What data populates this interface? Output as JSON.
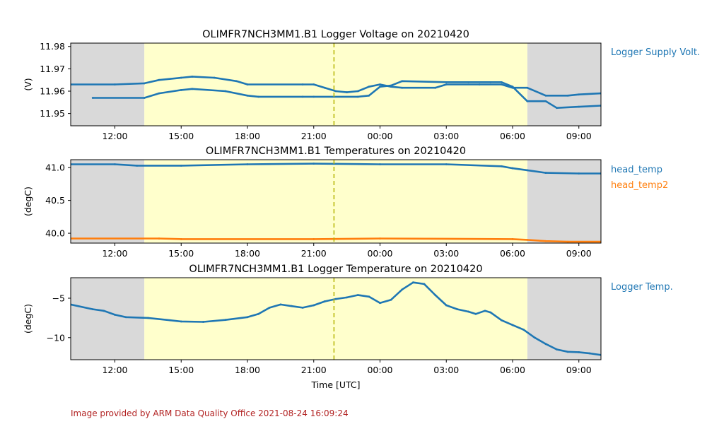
{
  "chart_data": [
    {
      "type": "scatter",
      "title": "OLIMFR7NCH3MM1.B1 Logger Voltage on 20210420",
      "ylabel": "(V)",
      "xlabel": "",
      "xlim": [
        "2021-04-20T10:00",
        "2021-04-21T10:00"
      ],
      "ylim": [
        11.9445,
        11.9815
      ],
      "yticks": [
        11.95,
        11.96,
        11.97,
        11.98
      ],
      "ytick_labels": [
        "11.95",
        "11.96",
        "11.97",
        "11.98"
      ],
      "xticks": [
        "2021-04-20T12:00",
        "2021-04-20T15:00",
        "2021-04-20T18:00",
        "2021-04-20T21:00",
        "2021-04-21T00:00",
        "2021-04-21T03:00",
        "2021-04-21T06:00",
        "2021-04-21T09:00"
      ],
      "xtick_labels": [
        "12:00",
        "15:00",
        "18:00",
        "21:00",
        "00:00",
        "03:00",
        "06:00",
        "09:00"
      ],
      "night_shading": [
        [
          "2021-04-20T10:00",
          "2021-04-20T13:20"
        ],
        [
          "2021-04-21T06:40",
          "2021-04-21T10:00"
        ]
      ],
      "day_shading": [
        "2021-04-20T13:20",
        "2021-04-21T06:40"
      ],
      "marker_line": "2021-04-20T21:55",
      "legend_position": "right",
      "series": [
        {
          "name": "Logger Supply Volt.",
          "color": "#1f77b4",
          "points": [
            [
              "2021-04-20T10:00",
              11.963
            ],
            [
              "2021-04-20T12:00",
              11.963
            ],
            [
              "2021-04-20T13:20",
              11.9635
            ],
            [
              "2021-04-20T14:00",
              11.965
            ],
            [
              "2021-04-20T15:00",
              11.966
            ],
            [
              "2021-04-20T15:30",
              11.9665
            ],
            [
              "2021-04-20T16:30",
              11.966
            ],
            [
              "2021-04-20T17:30",
              11.9645
            ],
            [
              "2021-04-20T18:00",
              11.963
            ],
            [
              "2021-04-20T20:30",
              11.963
            ],
            [
              "2021-04-20T21:00",
              11.963
            ],
            [
              "2021-04-20T21:30",
              11.9615
            ],
            [
              "2021-04-20T22:00",
              11.96
            ],
            [
              "2021-04-20T22:30",
              11.9595
            ],
            [
              "2021-04-20T23:00",
              11.96
            ],
            [
              "2021-04-20T23:30",
              11.962
            ],
            [
              "2021-04-21T00:00",
              11.963
            ],
            [
              "2021-04-21T00:30",
              11.962
            ],
            [
              "2021-04-21T01:00",
              11.9615
            ],
            [
              "2021-04-21T02:30",
              11.9615
            ],
            [
              "2021-04-21T03:00",
              11.963
            ],
            [
              "2021-04-21T04:30",
              11.963
            ],
            [
              "2021-04-21T05:30",
              11.963
            ],
            [
              "2021-04-21T06:00",
              11.9615
            ],
            [
              "2021-04-21T06:40",
              11.9615
            ],
            [
              "2021-04-21T07:30",
              11.958
            ],
            [
              "2021-04-21T08:30",
              11.958
            ],
            [
              "2021-04-21T09:00",
              11.9585
            ],
            [
              "2021-04-21T10:00",
              11.959
            ]
          ]
        },
        {
          "name": "",
          "color": "#1f77b4",
          "points": [
            [
              "2021-04-20T11:00",
              11.957
            ],
            [
              "2021-04-20T13:20",
              11.957
            ],
            [
              "2021-04-20T14:00",
              11.959
            ],
            [
              "2021-04-20T15:00",
              11.9605
            ],
            [
              "2021-04-20T15:30",
              11.961
            ],
            [
              "2021-04-20T17:00",
              11.96
            ],
            [
              "2021-04-20T18:00",
              11.958
            ],
            [
              "2021-04-20T18:30",
              11.9575
            ],
            [
              "2021-04-20T20:30",
              11.9575
            ],
            [
              "2021-04-20T21:00",
              11.9575
            ],
            [
              "2021-04-20T23:00",
              11.9575
            ],
            [
              "2021-04-20T23:30",
              11.958
            ],
            [
              "2021-04-21T00:00",
              11.962
            ],
            [
              "2021-04-21T00:30",
              11.9625
            ],
            [
              "2021-04-21T01:00",
              11.9645
            ],
            [
              "2021-04-21T03:00",
              11.964
            ],
            [
              "2021-04-21T04:00",
              11.964
            ],
            [
              "2021-04-21T05:00",
              11.964
            ],
            [
              "2021-04-21T05:30",
              11.964
            ],
            [
              "2021-04-21T06:00",
              11.962
            ],
            [
              "2021-04-21T06:40",
              11.9555
            ],
            [
              "2021-04-21T07:30",
              11.9555
            ],
            [
              "2021-04-21T08:00",
              11.9525
            ],
            [
              "2021-04-21T09:00",
              11.953
            ],
            [
              "2021-04-21T10:00",
              11.9535
            ]
          ]
        }
      ]
    },
    {
      "type": "line",
      "title": "OLIMFR7NCH3MM1.B1 Temperatures on 20210420",
      "ylabel": "(degC)",
      "xlabel": "",
      "xlim": [
        "2021-04-20T10:00",
        "2021-04-21T10:00"
      ],
      "ylim": [
        39.85,
        41.12
      ],
      "yticks": [
        40.0,
        40.5,
        41.0
      ],
      "ytick_labels": [
        "40.0",
        "40.5",
        "41.0"
      ],
      "xticks": [
        "2021-04-20T12:00",
        "2021-04-20T15:00",
        "2021-04-20T18:00",
        "2021-04-20T21:00",
        "2021-04-21T00:00",
        "2021-04-21T03:00",
        "2021-04-21T06:00",
        "2021-04-21T09:00"
      ],
      "xtick_labels": [
        "12:00",
        "15:00",
        "18:00",
        "21:00",
        "00:00",
        "03:00",
        "06:00",
        "09:00"
      ],
      "night_shading": [
        [
          "2021-04-20T10:00",
          "2021-04-20T13:20"
        ],
        [
          "2021-04-21T06:40",
          "2021-04-21T10:00"
        ]
      ],
      "day_shading": [
        "2021-04-20T13:20",
        "2021-04-21T06:40"
      ],
      "marker_line": "2021-04-20T21:55",
      "legend_position": "right",
      "series": [
        {
          "name": "head_temp",
          "color": "#1f77b4",
          "points": [
            [
              "2021-04-20T10:00",
              41.05
            ],
            [
              "2021-04-20T12:00",
              41.05
            ],
            [
              "2021-04-20T13:00",
              41.03
            ],
            [
              "2021-04-20T15:00",
              41.03
            ],
            [
              "2021-04-20T18:00",
              41.05
            ],
            [
              "2021-04-20T21:00",
              41.06
            ],
            [
              "2021-04-21T00:00",
              41.05
            ],
            [
              "2021-04-21T03:00",
              41.05
            ],
            [
              "2021-04-21T05:30",
              41.02
            ],
            [
              "2021-04-21T06:00",
              40.99
            ],
            [
              "2021-04-21T06:40",
              40.96
            ],
            [
              "2021-04-21T07:30",
              40.92
            ],
            [
              "2021-04-21T09:00",
              40.91
            ],
            [
              "2021-04-21T10:00",
              40.91
            ]
          ]
        },
        {
          "name": "head_temp2",
          "color": "#ff7f0e",
          "points": [
            [
              "2021-04-20T10:00",
              39.92
            ],
            [
              "2021-04-20T14:00",
              39.92
            ],
            [
              "2021-04-20T15:00",
              39.91
            ],
            [
              "2021-04-20T21:00",
              39.91
            ],
            [
              "2021-04-21T00:00",
              39.92
            ],
            [
              "2021-04-21T06:00",
              39.91
            ],
            [
              "2021-04-21T06:40",
              39.9
            ],
            [
              "2021-04-21T07:30",
              39.88
            ],
            [
              "2021-04-21T08:30",
              39.87
            ],
            [
              "2021-04-21T10:00",
              39.87
            ]
          ]
        }
      ]
    },
    {
      "type": "line",
      "title": "OLIMFR7NCH3MM1.B1 Logger Temperature on 20210420",
      "ylabel": "(degC)",
      "xlabel": "Time [UTC]",
      "xlim": [
        "2021-04-20T10:00",
        "2021-04-21T10:00"
      ],
      "ylim": [
        -12.8,
        -2.4
      ],
      "yticks": [
        -10,
        -5
      ],
      "ytick_labels": [
        "−10",
        "−5"
      ],
      "xticks": [
        "2021-04-20T12:00",
        "2021-04-20T15:00",
        "2021-04-20T18:00",
        "2021-04-20T21:00",
        "2021-04-21T00:00",
        "2021-04-21T03:00",
        "2021-04-21T06:00",
        "2021-04-21T09:00"
      ],
      "xtick_labels": [
        "12:00",
        "15:00",
        "18:00",
        "21:00",
        "00:00",
        "03:00",
        "06:00",
        "09:00"
      ],
      "night_shading": [
        [
          "2021-04-20T10:00",
          "2021-04-20T13:20"
        ],
        [
          "2021-04-21T06:40",
          "2021-04-21T10:00"
        ]
      ],
      "day_shading": [
        "2021-04-20T13:20",
        "2021-04-21T06:40"
      ],
      "marker_line": "2021-04-20T21:55",
      "legend_position": "right",
      "series": [
        {
          "name": "Logger Temp.",
          "color": "#1f77b4",
          "points": [
            [
              "2021-04-20T10:00",
              -5.8
            ],
            [
              "2021-04-20T11:00",
              -6.4
            ],
            [
              "2021-04-20T11:30",
              -6.6
            ],
            [
              "2021-04-20T12:00",
              -7.1
            ],
            [
              "2021-04-20T12:30",
              -7.4
            ],
            [
              "2021-04-20T13:30",
              -7.5
            ],
            [
              "2021-04-20T14:30",
              -7.8
            ],
            [
              "2021-04-20T15:00",
              -7.95
            ],
            [
              "2021-04-20T16:00",
              -8.0
            ],
            [
              "2021-04-20T17:00",
              -7.75
            ],
            [
              "2021-04-20T18:00",
              -7.4
            ],
            [
              "2021-04-20T18:30",
              -7.0
            ],
            [
              "2021-04-20T19:00",
              -6.2
            ],
            [
              "2021-04-20T19:30",
              -5.8
            ],
            [
              "2021-04-20T20:00",
              -6.0
            ],
            [
              "2021-04-20T20:30",
              -6.2
            ],
            [
              "2021-04-20T21:00",
              -5.9
            ],
            [
              "2021-04-20T21:30",
              -5.4
            ],
            [
              "2021-04-20T22:00",
              -5.1
            ],
            [
              "2021-04-20T22:30",
              -4.9
            ],
            [
              "2021-04-20T23:00",
              -4.6
            ],
            [
              "2021-04-20T23:30",
              -4.8
            ],
            [
              "2021-04-21T00:00",
              -5.6
            ],
            [
              "2021-04-21T00:30",
              -5.2
            ],
            [
              "2021-04-21T01:00",
              -3.9
            ],
            [
              "2021-04-21T01:30",
              -3.0
            ],
            [
              "2021-04-21T02:00",
              -3.2
            ],
            [
              "2021-04-21T02:30",
              -4.6
            ],
            [
              "2021-04-21T03:00",
              -5.9
            ],
            [
              "2021-04-21T03:30",
              -6.4
            ],
            [
              "2021-04-21T04:00",
              -6.7
            ],
            [
              "2021-04-21T04:20",
              -7.0
            ],
            [
              "2021-04-21T04:45",
              -6.6
            ],
            [
              "2021-04-21T05:00",
              -6.8
            ],
            [
              "2021-04-21T05:30",
              -7.8
            ],
            [
              "2021-04-21T06:00",
              -8.4
            ],
            [
              "2021-04-21T06:30",
              -9.0
            ],
            [
              "2021-04-21T07:00",
              -10.0
            ],
            [
              "2021-04-21T07:30",
              -10.8
            ],
            [
              "2021-04-21T08:00",
              -11.5
            ],
            [
              "2021-04-21T08:30",
              -11.8
            ],
            [
              "2021-04-21T09:00",
              -11.85
            ],
            [
              "2021-04-21T09:30",
              -12.0
            ],
            [
              "2021-04-21T10:00",
              -12.2
            ]
          ]
        }
      ]
    }
  ],
  "colors": {
    "night": "#d9d9d9",
    "day": "#ffffcc",
    "marker_line": "#b5b500",
    "footer": "#b22222"
  },
  "footer": "Image provided by ARM Data Quality Office 2021-08-24 16:09:24"
}
